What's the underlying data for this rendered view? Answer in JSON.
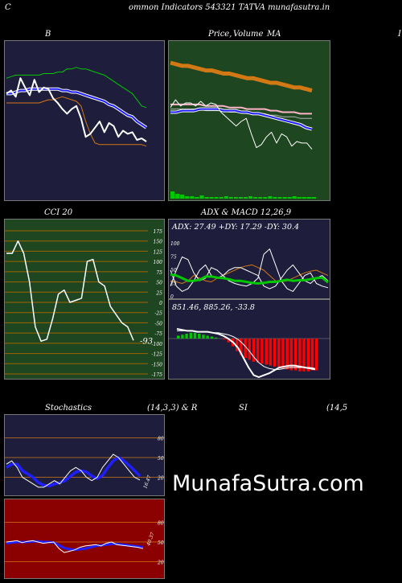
{
  "header": {
    "left": "C",
    "title": "ommon  Indicators 543321 TATVA munafasutra.in",
    "right": "I"
  },
  "titles": {
    "bb": "B",
    "price_left": "Price,",
    "price_overlay": "Volume",
    "price_ma": "MA",
    "cci": "CCI 20",
    "adx_macd": "ADX  & MACD 12,26,9",
    "stoch": "Stochastics",
    "stoch_params": "(14,3,3) & R",
    "rsi": "SI",
    "rsi_params": "(14,5"
  },
  "watermark": "MunafaSutra.com",
  "colors": {
    "bg": "#000000",
    "bb_panel": "#1e1e3c",
    "price_panel": "#1e4620",
    "cci_panel": "#1e4620",
    "adx_panel": "#1e1e3c",
    "macd_panel": "#1e1e3c",
    "stoch_panel": "#1e1e3c",
    "rsi_panel": "#8b0000",
    "white": "#ffffff",
    "green": "#00c800",
    "orange": "#d27814",
    "blue": "#1e1eff",
    "red": "#ff0000",
    "pink": "#ffb4c8",
    "grid": "#a06400"
  },
  "chart_data": [
    {
      "id": "bollinger",
      "type": "line",
      "series": [
        {
          "key": "price",
          "values": [
            68,
            70,
            66,
            78,
            72,
            67,
            77,
            69,
            72,
            71,
            65,
            62,
            58,
            55,
            58,
            60,
            52,
            40,
            42,
            46,
            50,
            43,
            49,
            47,
            40,
            44,
            42,
            43,
            38,
            39,
            37
          ]
        },
        {
          "key": "upper",
          "values": [
            78,
            79,
            80,
            80,
            80,
            80,
            80,
            80,
            81,
            81,
            81,
            82,
            82,
            84,
            84,
            85,
            84,
            84,
            83,
            82,
            81,
            80,
            78,
            76,
            74,
            72,
            70,
            68,
            64,
            60,
            59
          ]
        },
        {
          "key": "middle",
          "values": [
            68,
            68,
            69,
            70,
            70,
            71,
            71,
            71,
            71,
            71,
            71,
            71,
            70,
            70,
            69,
            69,
            68,
            67,
            66,
            65,
            64,
            63,
            61,
            60,
            58,
            56,
            54,
            53,
            50,
            48,
            46
          ]
        },
        {
          "key": "lower",
          "values": [
            62,
            62,
            62,
            62,
            62,
            62,
            62,
            62,
            63,
            64,
            64,
            65,
            66,
            65,
            64,
            63,
            60,
            50,
            42,
            36,
            35,
            35,
            35,
            35,
            35,
            35,
            35,
            35,
            35,
            35,
            34
          ]
        }
      ]
    },
    {
      "id": "price_ma",
      "type": "line",
      "series": [
        {
          "key": "ma_long",
          "values": [
            88,
            87,
            86,
            86,
            85,
            84,
            83,
            83,
            82,
            81,
            81,
            80,
            79,
            78,
            78,
            77,
            76,
            75,
            75,
            74,
            73,
            72,
            72,
            71,
            70
          ]
        },
        {
          "key": "ma_mid",
          "values": [
            61,
            61,
            61,
            61,
            61,
            61,
            60,
            60,
            60,
            60,
            59,
            59,
            59,
            58,
            58,
            58,
            58,
            57,
            57,
            56,
            56,
            56,
            55,
            55,
            55
          ]
        },
        {
          "key": "ma_short",
          "values": [
            56,
            56,
            57,
            57,
            57,
            58,
            58,
            58,
            58,
            57,
            57,
            57,
            56,
            56,
            55,
            55,
            54,
            53,
            52,
            51,
            50,
            49,
            48,
            46,
            45
          ]
        },
        {
          "key": "price",
          "values": [
            59,
            64,
            60,
            62,
            62,
            60,
            63,
            60,
            62,
            61,
            56,
            53,
            50,
            47,
            50,
            52,
            42,
            33,
            35,
            40,
            43,
            36,
            42,
            40,
            34,
            37,
            36,
            36,
            32
          ]
        },
        {
          "key": "volume",
          "values": [
            0.9,
            0.6,
            0.5,
            0.3,
            0.3,
            0.2,
            0.4,
            0.2,
            0.2,
            0.2,
            0.2,
            0.3,
            0.2,
            0.2,
            0.2,
            0.2,
            0.3,
            0.2,
            0.2,
            0.2,
            0.3,
            0.2,
            0.2,
            0.2,
            0.2,
            0.3,
            0.2,
            0.2,
            0.2,
            0.2
          ]
        }
      ]
    },
    {
      "id": "cci",
      "type": "line",
      "title": "CCI 20",
      "ylim": [
        -175,
        175
      ],
      "ticks": [
        "175",
        "150",
        "125",
        "100",
        "75",
        "50",
        "25",
        "0",
        "-25",
        "-50",
        "-75",
        "-100",
        "-125",
        "-150",
        "-175"
      ],
      "last_label": "-93",
      "values": [
        120,
        120,
        150,
        120,
        50,
        -60,
        -95,
        -90,
        -40,
        20,
        30,
        0,
        5,
        10,
        100,
        105,
        50,
        40,
        -10,
        -30,
        -50,
        -60,
        -93
      ]
    },
    {
      "id": "adx",
      "type": "line",
      "readout": "ADX: 27.49  +DY: 17.29  -DY: 30.4",
      "ticks": [
        "100",
        "75",
        "50",
        "25",
        "0"
      ],
      "series": [
        {
          "key": "adx",
          "values": [
            42,
            40,
            35,
            30,
            30,
            32,
            38,
            38,
            36,
            35,
            33,
            30,
            30,
            28,
            26,
            25,
            26,
            28,
            28,
            30,
            32,
            30,
            31,
            31,
            33,
            35,
            36,
            27
          ]
        },
        {
          "key": "plus_di",
          "values": [
            20,
            50,
            75,
            70,
            45,
            30,
            35,
            55,
            50,
            40,
            30,
            25,
            22,
            20,
            25,
            35,
            80,
            90,
            60,
            30,
            15,
            10,
            25,
            40,
            45,
            25,
            20,
            17
          ]
        },
        {
          "key": "minus_di",
          "values": [
            50,
            20,
            10,
            15,
            30,
            50,
            60,
            40,
            35,
            40,
            50,
            55,
            55,
            50,
            45,
            40,
            20,
            15,
            20,
            35,
            50,
            60,
            45,
            30,
            25,
            35,
            40,
            30
          ]
        },
        {
          "key": "minus_di_orange",
          "values": [
            30,
            28,
            25,
            30,
            40,
            35,
            30,
            28,
            35,
            40,
            45,
            50,
            55,
            58,
            60,
            55,
            50,
            40,
            30,
            28,
            30,
            35,
            40,
            45,
            48,
            50,
            45,
            40
          ]
        }
      ]
    },
    {
      "id": "macd",
      "type": "bar",
      "readout": "851.46,  885.26,  -33.8",
      "values": [
        3,
        4,
        5,
        6,
        6,
        5,
        4,
        3,
        2,
        1,
        0,
        -1,
        -4,
        -8,
        -13,
        -17,
        -20,
        -22,
        -24,
        -25,
        -26,
        -27,
        -28,
        -29,
        -30,
        -31,
        -32,
        -33,
        -33,
        -34,
        -34,
        -34,
        -33,
        -33
      ],
      "series": [
        {
          "key": "macd",
          "values": [
            10,
            9,
            8,
            8,
            7,
            7,
            7,
            6,
            5,
            3,
            0,
            -4,
            -10,
            -20,
            -30,
            -38,
            -40,
            -38,
            -36,
            -33,
            -30,
            -29,
            -28,
            -28,
            -29,
            -30,
            -31,
            -32
          ]
        },
        {
          "key": "signal",
          "values": [
            8,
            8,
            8,
            8,
            7,
            7,
            7,
            6,
            6,
            5,
            4,
            2,
            -1,
            -6,
            -12,
            -19,
            -25,
            -29,
            -31,
            -32,
            -32,
            -31,
            -30,
            -30,
            -30,
            -30,
            -30,
            -31
          ]
        }
      ]
    },
    {
      "id": "stochastics",
      "type": "line",
      "ticks": [
        "80",
        "50",
        "20"
      ],
      "last_label": "16.47",
      "series": [
        {
          "key": "k",
          "values": [
            40,
            45,
            35,
            20,
            15,
            10,
            5,
            5,
            10,
            15,
            10,
            20,
            30,
            35,
            30,
            20,
            15,
            20,
            35,
            45,
            55,
            50,
            40,
            30,
            20,
            16
          ]
        },
        {
          "key": "d",
          "values": [
            35,
            40,
            40,
            30,
            25,
            20,
            12,
            8,
            7,
            10,
            12,
            15,
            22,
            28,
            30,
            28,
            22,
            18,
            23,
            35,
            45,
            50,
            45,
            38,
            30,
            22
          ]
        }
      ]
    },
    {
      "id": "rsi",
      "type": "line",
      "ticks": [
        "80",
        "50",
        "20"
      ],
      "last_label": "40.37",
      "series": [
        {
          "key": "rsi",
          "values": [
            50,
            51,
            52,
            49,
            51,
            52,
            50,
            48,
            49,
            50,
            40,
            34,
            36,
            38,
            42,
            44,
            45,
            46,
            44,
            48,
            50,
            46,
            45,
            44,
            43,
            42,
            40
          ]
        },
        {
          "key": "rsi_ma",
          "values": [
            48,
            49,
            50,
            50,
            50,
            51,
            51,
            50,
            50,
            49,
            45,
            41,
            39,
            38,
            39,
            40,
            42,
            44,
            45,
            46,
            47,
            47,
            46,
            45,
            44,
            43,
            42
          ]
        }
      ]
    }
  ]
}
